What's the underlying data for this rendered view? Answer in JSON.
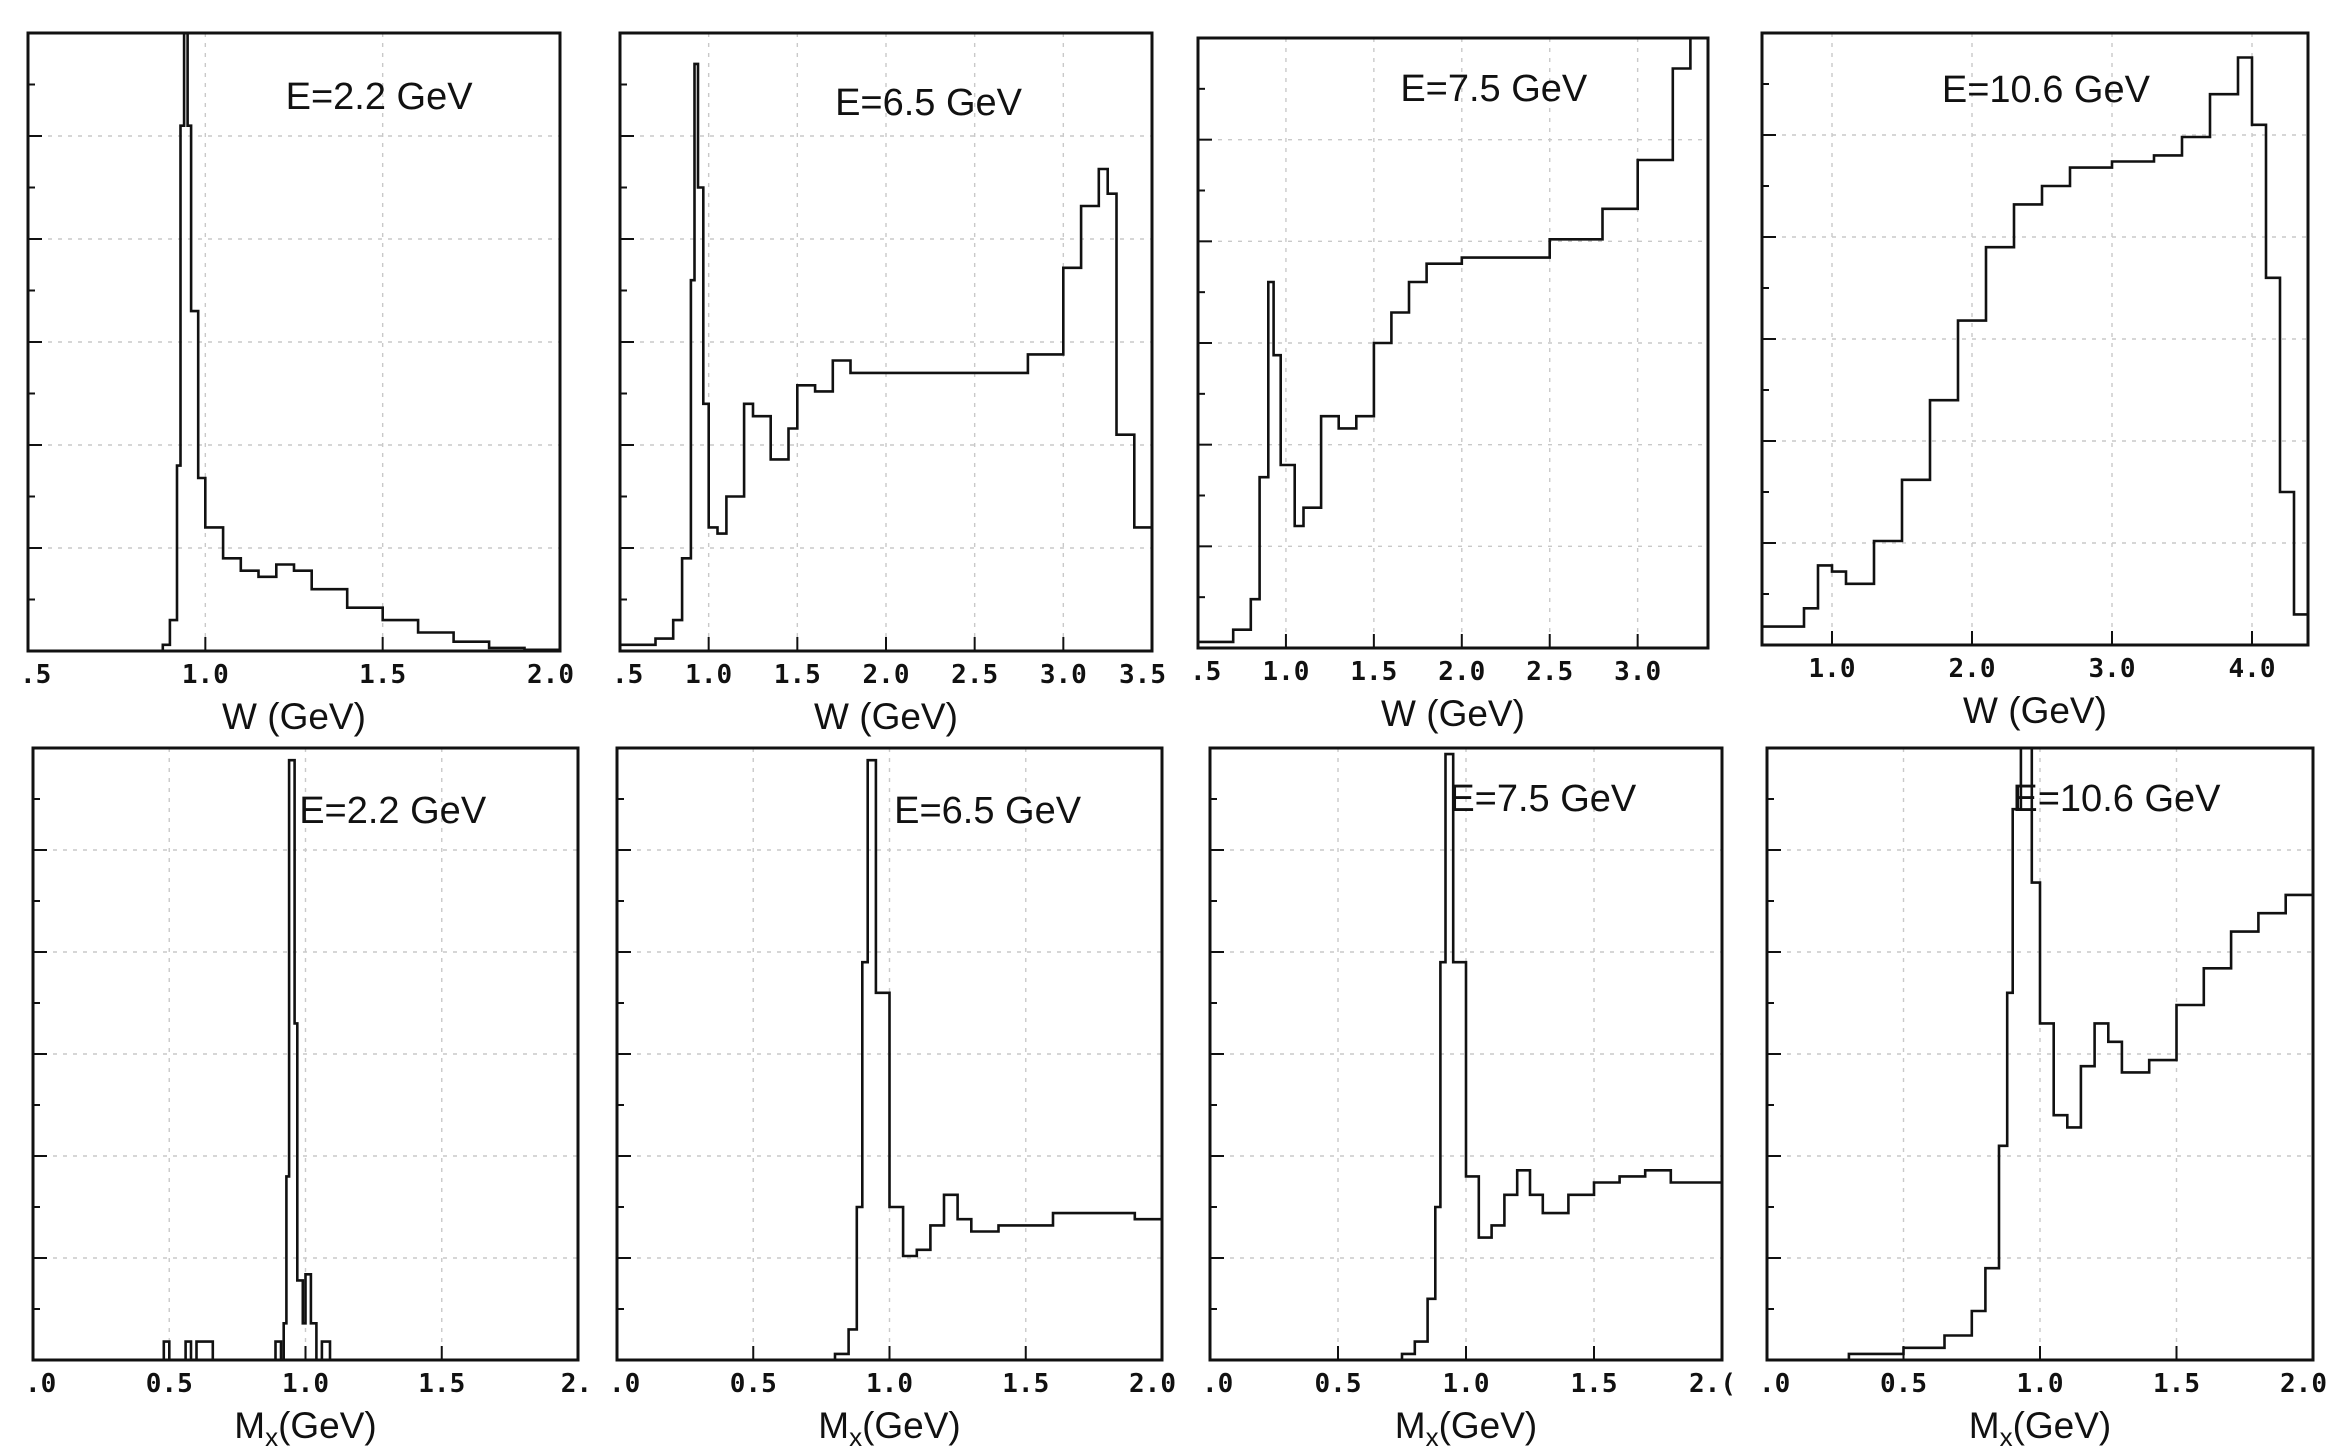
{
  "chart_data": [
    {
      "type": "histogram",
      "row": "top",
      "title": "E=2.2 GeV",
      "xlabel": "W (GeV)",
      "ylabel": "",
      "xlim": [
        0.5,
        2.0
      ],
      "ylim": [
        0,
        1.0
      ],
      "xticks": [
        0.5,
        1.0,
        1.5,
        2.0
      ],
      "xtick_labels": [
        ".5",
        "1.0",
        "1.5",
        "2.0"
      ],
      "points": [
        [
          0.5,
          0
        ],
        [
          0.85,
          0
        ],
        [
          0.88,
          0.01
        ],
        [
          0.9,
          0.05
        ],
        [
          0.92,
          0.3
        ],
        [
          0.93,
          0.85
        ],
        [
          0.94,
          1.0
        ],
        [
          0.95,
          0.85
        ],
        [
          0.96,
          0.55
        ],
        [
          0.98,
          0.28
        ],
        [
          1.0,
          0.2
        ],
        [
          1.05,
          0.15
        ],
        [
          1.1,
          0.13
        ],
        [
          1.15,
          0.12
        ],
        [
          1.2,
          0.14
        ],
        [
          1.25,
          0.13
        ],
        [
          1.3,
          0.1
        ],
        [
          1.4,
          0.07
        ],
        [
          1.5,
          0.05
        ],
        [
          1.6,
          0.03
        ],
        [
          1.7,
          0.015
        ],
        [
          1.8,
          0.005
        ],
        [
          1.9,
          0.002
        ],
        [
          2.0,
          0
        ]
      ]
    },
    {
      "type": "histogram",
      "row": "top",
      "title": "E=6.5 GeV",
      "xlabel": "W (GeV)",
      "ylabel": "",
      "xlim": [
        0.5,
        3.5
      ],
      "ylim": [
        0,
        1.0
      ],
      "xticks": [
        0.5,
        1.0,
        1.5,
        2.0,
        2.5,
        3.0,
        3.5
      ],
      "xtick_labels": [
        ".5",
        "1.0",
        "1.5",
        "2.0",
        "2.5",
        "3.0",
        "3.5"
      ],
      "points": [
        [
          0.5,
          0.01
        ],
        [
          0.7,
          0.02
        ],
        [
          0.8,
          0.05
        ],
        [
          0.85,
          0.15
        ],
        [
          0.9,
          0.6
        ],
        [
          0.92,
          0.95
        ],
        [
          0.94,
          0.75
        ],
        [
          0.97,
          0.4
        ],
        [
          1.0,
          0.2
        ],
        [
          1.05,
          0.19
        ],
        [
          1.1,
          0.25
        ],
        [
          1.2,
          0.4
        ],
        [
          1.25,
          0.38
        ],
        [
          1.35,
          0.31
        ],
        [
          1.45,
          0.36
        ],
        [
          1.5,
          0.43
        ],
        [
          1.6,
          0.42
        ],
        [
          1.7,
          0.47
        ],
        [
          1.8,
          0.45
        ],
        [
          2.0,
          0.45
        ],
        [
          2.5,
          0.45
        ],
        [
          2.8,
          0.48
        ],
        [
          3.0,
          0.62
        ],
        [
          3.1,
          0.72
        ],
        [
          3.2,
          0.78
        ],
        [
          3.25,
          0.74
        ],
        [
          3.3,
          0.35
        ],
        [
          3.4,
          0.2
        ],
        [
          3.5,
          0.05
        ]
      ]
    },
    {
      "type": "histogram",
      "row": "top",
      "title": "E=7.5 GeV",
      "xlabel": "W (GeV)",
      "ylabel": "",
      "xlim": [
        0.5,
        3.4
      ],
      "ylim": [
        0,
        1.0
      ],
      "xticks": [
        0.5,
        1.0,
        1.5,
        2.0,
        2.5,
        3.0
      ],
      "xtick_labels": [
        ".5",
        "1.0",
        "1.5",
        "2.0",
        "2.5",
        "3.0"
      ],
      "points": [
        [
          0.5,
          0.01
        ],
        [
          0.7,
          0.03
        ],
        [
          0.8,
          0.08
        ],
        [
          0.85,
          0.28
        ],
        [
          0.9,
          0.6
        ],
        [
          0.93,
          0.48
        ],
        [
          0.97,
          0.3
        ],
        [
          1.05,
          0.2
        ],
        [
          1.1,
          0.23
        ],
        [
          1.2,
          0.38
        ],
        [
          1.3,
          0.36
        ],
        [
          1.4,
          0.38
        ],
        [
          1.5,
          0.5
        ],
        [
          1.6,
          0.55
        ],
        [
          1.7,
          0.6
        ],
        [
          1.8,
          0.63
        ],
        [
          2.0,
          0.64
        ],
        [
          2.5,
          0.67
        ],
        [
          2.8,
          0.72
        ],
        [
          3.0,
          0.8
        ],
        [
          3.2,
          0.95
        ],
        [
          3.3,
          1.0
        ],
        [
          3.4,
          0.96
        ]
      ]
    },
    {
      "type": "histogram",
      "row": "top",
      "title": "E=10.6 GeV",
      "xlabel": "W (GeV)",
      "ylabel": "",
      "xlim": [
        0.5,
        4.4
      ],
      "ylim": [
        0,
        1.0
      ],
      "xticks": [
        1.0,
        2.0,
        3.0,
        4.0
      ],
      "xtick_labels": [
        "1.0",
        "2.0",
        "3.0",
        "4.0"
      ],
      "points": [
        [
          0.5,
          0.03
        ],
        [
          0.8,
          0.06
        ],
        [
          0.9,
          0.13
        ],
        [
          1.0,
          0.12
        ],
        [
          1.1,
          0.1
        ],
        [
          1.3,
          0.17
        ],
        [
          1.5,
          0.27
        ],
        [
          1.7,
          0.4
        ],
        [
          1.9,
          0.53
        ],
        [
          2.1,
          0.65
        ],
        [
          2.3,
          0.72
        ],
        [
          2.5,
          0.75
        ],
        [
          2.7,
          0.78
        ],
        [
          3.0,
          0.79
        ],
        [
          3.3,
          0.8
        ],
        [
          3.5,
          0.83
        ],
        [
          3.7,
          0.9
        ],
        [
          3.9,
          0.96
        ],
        [
          4.0,
          0.85
        ],
        [
          4.1,
          0.6
        ],
        [
          4.2,
          0.25
        ],
        [
          4.3,
          0.05
        ],
        [
          4.4,
          0.02
        ]
      ]
    },
    {
      "type": "histogram",
      "row": "bottom",
      "title": "E=2.2 GeV",
      "xlabel": "Mx(GeV)",
      "ylabel": "",
      "xlim": [
        0.0,
        2.0
      ],
      "ylim": [
        0,
        1.0
      ],
      "xticks": [
        0.0,
        0.5,
        1.0,
        1.5,
        2.0
      ],
      "xtick_labels": [
        ".0",
        "0.5",
        "1.0",
        "1.5",
        "2."
      ],
      "points": [
        [
          0.0,
          0
        ],
        [
          0.47,
          0
        ],
        [
          0.48,
          0.03
        ],
        [
          0.5,
          0
        ],
        [
          0.55,
          0
        ],
        [
          0.56,
          0.03
        ],
        [
          0.58,
          0
        ],
        [
          0.6,
          0.03
        ],
        [
          0.65,
          0.03
        ],
        [
          0.66,
          0
        ],
        [
          0.88,
          0
        ],
        [
          0.89,
          0.03
        ],
        [
          0.91,
          0
        ],
        [
          0.92,
          0.06
        ],
        [
          0.93,
          0.3
        ],
        [
          0.94,
          0.98
        ],
        [
          0.96,
          0.55
        ],
        [
          0.97,
          0.13
        ],
        [
          0.99,
          0.06
        ],
        [
          1.0,
          0.14
        ],
        [
          1.02,
          0.06
        ],
        [
          1.04,
          0
        ],
        [
          1.06,
          0.03
        ],
        [
          1.09,
          0
        ],
        [
          2.0,
          0
        ]
      ]
    },
    {
      "type": "histogram",
      "row": "bottom",
      "title": "E=6.5 GeV",
      "xlabel": "Mx(GeV)",
      "ylabel": "",
      "xlim": [
        0.0,
        2.0
      ],
      "ylim": [
        0,
        1.0
      ],
      "xticks": [
        0.0,
        0.5,
        1.0,
        1.5,
        2.0
      ],
      "xtick_labels": [
        ".0",
        "0.5",
        "1.0",
        "1.5",
        "2.0"
      ],
      "points": [
        [
          0.0,
          0
        ],
        [
          0.6,
          0
        ],
        [
          0.8,
          0.01
        ],
        [
          0.85,
          0.05
        ],
        [
          0.88,
          0.25
        ],
        [
          0.9,
          0.65
        ],
        [
          0.92,
          0.98
        ],
        [
          0.95,
          0.6
        ],
        [
          1.0,
          0.25
        ],
        [
          1.05,
          0.17
        ],
        [
          1.1,
          0.18
        ],
        [
          1.15,
          0.22
        ],
        [
          1.2,
          0.27
        ],
        [
          1.25,
          0.23
        ],
        [
          1.3,
          0.21
        ],
        [
          1.4,
          0.22
        ],
        [
          1.6,
          0.24
        ],
        [
          1.8,
          0.24
        ],
        [
          1.9,
          0.23
        ],
        [
          2.0,
          0.22
        ]
      ]
    },
    {
      "type": "histogram",
      "row": "bottom",
      "title": "E=7.5 GeV",
      "xlabel": "Mx(GeV)",
      "ylabel": "",
      "xlim": [
        0.0,
        2.0
      ],
      "ylim": [
        0,
        1.0
      ],
      "xticks": [
        0.0,
        0.5,
        1.0,
        1.5,
        2.0
      ],
      "xtick_labels": [
        ".0",
        "0.5",
        "1.0",
        "1.5",
        "2.("
      ],
      "points": [
        [
          0.0,
          0
        ],
        [
          0.6,
          0
        ],
        [
          0.75,
          0.01
        ],
        [
          0.8,
          0.03
        ],
        [
          0.85,
          0.1
        ],
        [
          0.88,
          0.25
        ],
        [
          0.9,
          0.65
        ],
        [
          0.92,
          0.99
        ],
        [
          0.95,
          0.65
        ],
        [
          1.0,
          0.3
        ],
        [
          1.05,
          0.2
        ],
        [
          1.1,
          0.22
        ],
        [
          1.15,
          0.27
        ],
        [
          1.2,
          0.31
        ],
        [
          1.25,
          0.27
        ],
        [
          1.3,
          0.24
        ],
        [
          1.4,
          0.27
        ],
        [
          1.5,
          0.29
        ],
        [
          1.6,
          0.3
        ],
        [
          1.7,
          0.31
        ],
        [
          1.8,
          0.29
        ],
        [
          2.0,
          0.28
        ]
      ]
    },
    {
      "type": "histogram",
      "row": "bottom",
      "title": "E=10.6 GeV",
      "xlabel": "Mx(GeV)",
      "ylabel": "",
      "xlim": [
        0.0,
        2.0
      ],
      "ylim": [
        0,
        1.0
      ],
      "xticks": [
        0.0,
        0.5,
        1.0,
        1.5,
        2.0
      ],
      "xtick_labels": [
        ".0",
        "0.5",
        "1.0",
        "1.5",
        "2.0"
      ],
      "points": [
        [
          0.0,
          0
        ],
        [
          0.3,
          0.01
        ],
        [
          0.5,
          0.02
        ],
        [
          0.65,
          0.04
        ],
        [
          0.75,
          0.08
        ],
        [
          0.8,
          0.15
        ],
        [
          0.85,
          0.35
        ],
        [
          0.88,
          0.6
        ],
        [
          0.9,
          0.9
        ],
        [
          0.93,
          1.0
        ],
        [
          0.97,
          0.78
        ],
        [
          1.0,
          0.55
        ],
        [
          1.05,
          0.4
        ],
        [
          1.1,
          0.38
        ],
        [
          1.15,
          0.48
        ],
        [
          1.2,
          0.55
        ],
        [
          1.25,
          0.52
        ],
        [
          1.3,
          0.47
        ],
        [
          1.4,
          0.49
        ],
        [
          1.5,
          0.58
        ],
        [
          1.6,
          0.64
        ],
        [
          1.7,
          0.7
        ],
        [
          1.8,
          0.73
        ],
        [
          1.9,
          0.76
        ],
        [
          2.0,
          0.78
        ]
      ]
    }
  ]
}
